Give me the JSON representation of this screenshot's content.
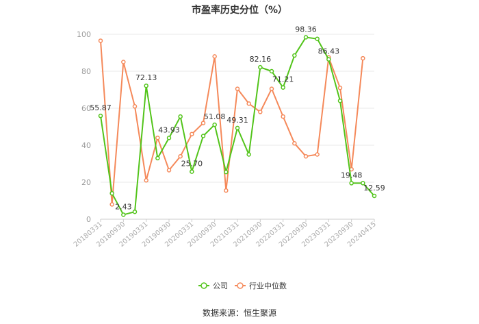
{
  "chart_data": {
    "type": "line",
    "title": "市盈率历史分位（%）",
    "ylim": [
      0,
      100
    ],
    "yticks": [
      0,
      20,
      40,
      60,
      80,
      100
    ],
    "x": [
      "20180331",
      "20180630",
      "20180930",
      "20181231",
      "20190331",
      "20190630",
      "20190930",
      "20191231",
      "20200331",
      "20200630",
      "20200930",
      "20201231",
      "20210331",
      "20210630",
      "20210930",
      "20211231",
      "20220331",
      "20220630",
      "20220930",
      "20221231",
      "20230331",
      "20230630",
      "20230930",
      "20231231",
      "20240415"
    ],
    "xtick_labels": [
      "20180331",
      "20180930",
      "20190331",
      "20190930",
      "20200331",
      "20200930",
      "20210331",
      "20210930",
      "20220331",
      "20220930",
      "20230331",
      "20230930",
      "20240415"
    ],
    "grid": true,
    "legend_position": "bottom-center",
    "series": [
      {
        "name": "公司",
        "color": "#52c41a",
        "values": [
          55.87,
          14,
          2.43,
          4,
          72.13,
          33,
          43.93,
          55.5,
          25.7,
          45,
          51.08,
          25.5,
          49.31,
          35,
          82.16,
          80,
          71.21,
          88.5,
          98.36,
          97.5,
          86.43,
          64,
          19.48,
          19.5,
          12.59
        ],
        "labels": [
          "55.87",
          "",
          "2.43",
          "",
          "72.13",
          "",
          "43.93",
          "",
          "25.70",
          "",
          "51.08",
          "",
          "49.31",
          "",
          "82.16",
          "",
          "71.21",
          "",
          "98.36",
          "",
          "86.43",
          "",
          "19.48",
          "",
          "12.59"
        ]
      },
      {
        "name": "行业中位数",
        "color": "#f5895a",
        "values": [
          96.5,
          8,
          85,
          61,
          21,
          44,
          26.5,
          34,
          46,
          52,
          88,
          15.5,
          70.5,
          62.5,
          58,
          70.5,
          55.5,
          41,
          34,
          35,
          87.5,
          71,
          27,
          87,
          null
        ]
      }
    ],
    "source": "数据来源：恒生聚源"
  }
}
